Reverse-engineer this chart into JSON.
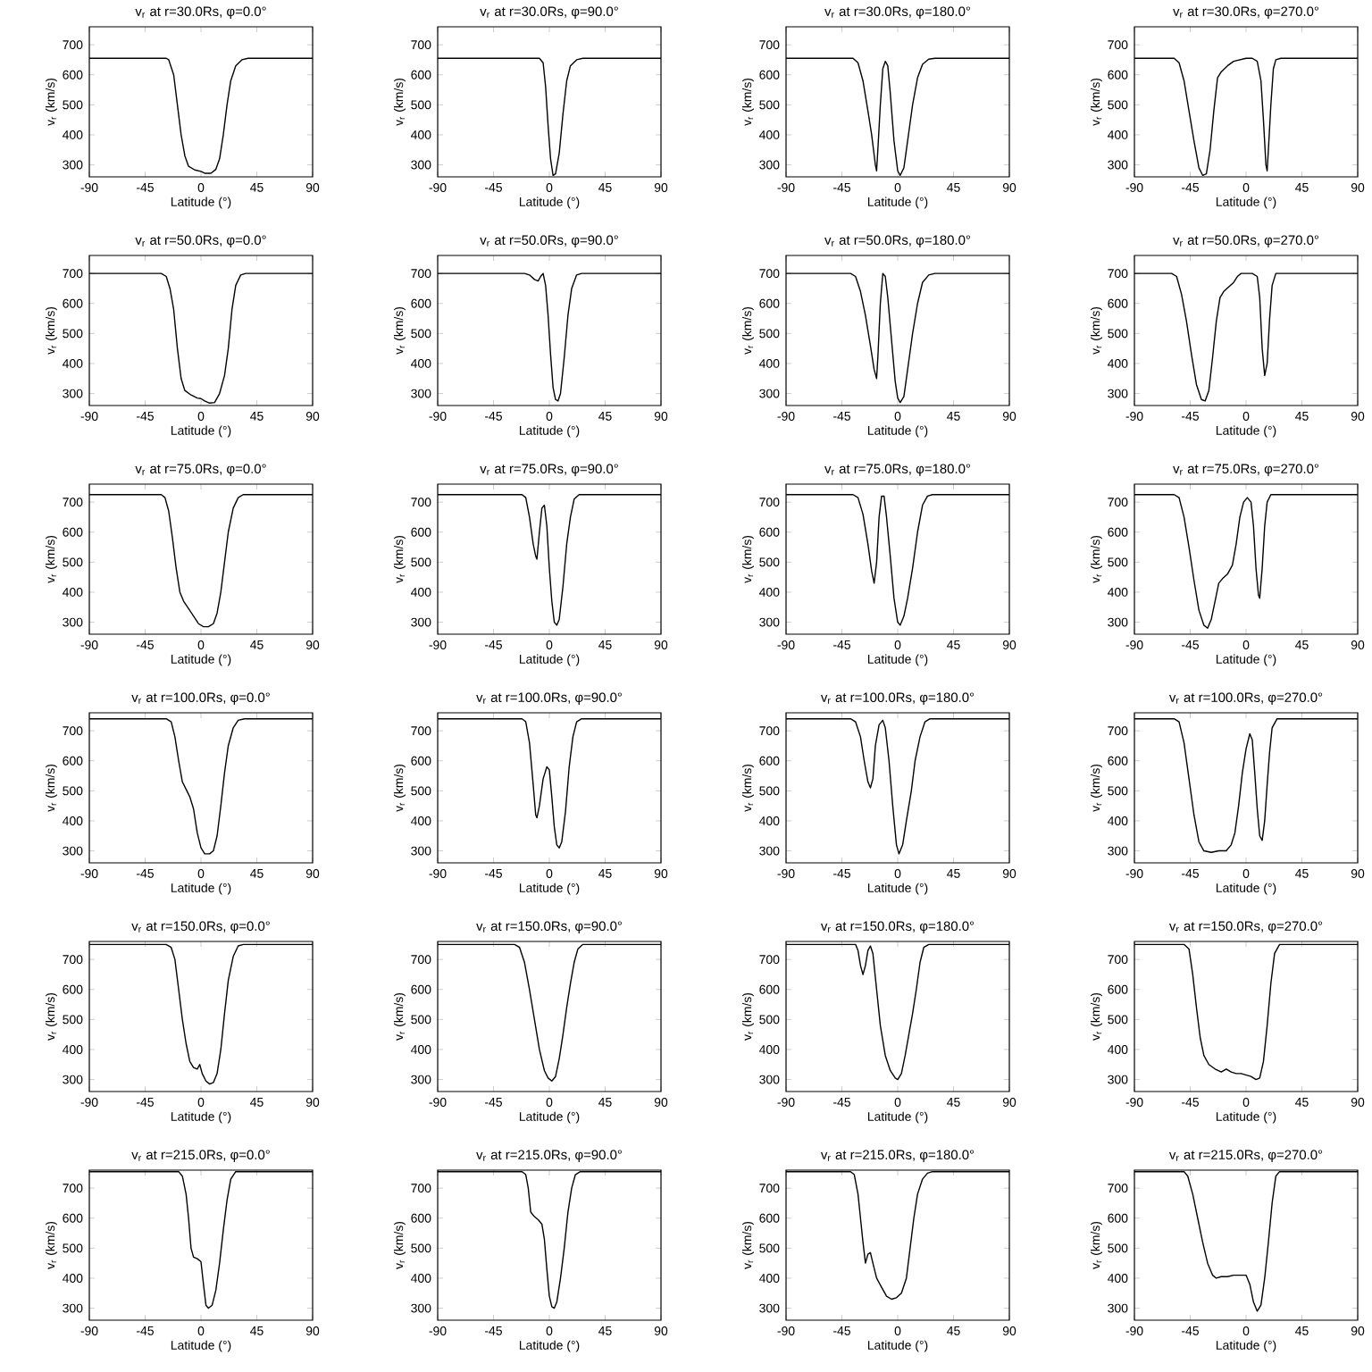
{
  "chart_data": [
    {
      "type": "line",
      "title": "v$_{r}$ at r=30.0Rs, φ=0.0°",
      "xlabel": "Latitude (°)",
      "ylabel": "v$_{r}$ (km/s)",
      "color": "#000000",
      "xlim": [
        -90,
        90
      ],
      "ylim": [
        260,
        760
      ],
      "xticks": [
        -90,
        -45,
        0,
        45,
        90
      ],
      "yticks": [
        300,
        400,
        500,
        600,
        700
      ],
      "x": [
        -90,
        -28,
        -26,
        -22,
        -19,
        -16,
        -13,
        -10,
        -5,
        0,
        3,
        8,
        12,
        15,
        18,
        21,
        24,
        28,
        33,
        38,
        90
      ],
      "values": [
        655,
        655,
        650,
        600,
        500,
        400,
        330,
        295,
        283,
        278,
        272,
        272,
        285,
        320,
        400,
        500,
        580,
        630,
        650,
        655,
        655
      ]
    },
    {
      "type": "line",
      "title": "v$_{r}$ at r=30.0Rs, φ=90.0°",
      "xlabel": "Latitude (°)",
      "ylabel": "v$_{r}$ (km/s)",
      "color": "#000000",
      "xlim": [
        -90,
        90
      ],
      "ylim": [
        260,
        760
      ],
      "xticks": [
        -90,
        -45,
        0,
        45,
        90
      ],
      "yticks": [
        300,
        400,
        500,
        600,
        700
      ],
      "x": [
        -90,
        -8,
        -5,
        -3,
        -1,
        1,
        3,
        5,
        8,
        11,
        14,
        17,
        22,
        27,
        90
      ],
      "values": [
        655,
        655,
        640,
        560,
        430,
        320,
        265,
        270,
        340,
        470,
        580,
        630,
        650,
        655,
        655
      ]
    },
    {
      "type": "line",
      "title": "v$_{r}$ at r=30.0Rs, φ=180.0°",
      "xlabel": "Latitude (°)",
      "ylabel": "v$_{r}$ (km/s)",
      "color": "#000000",
      "xlim": [
        -90,
        90
      ],
      "ylim": [
        260,
        760
      ],
      "xticks": [
        -90,
        -45,
        0,
        45,
        90
      ],
      "yticks": [
        300,
        400,
        500,
        600,
        700
      ],
      "x": [
        -90,
        -36,
        -32,
        -28,
        -24,
        -21,
        -18,
        -17,
        -16,
        -14,
        -12,
        -10,
        -8,
        -6,
        -3,
        0,
        2,
        5,
        8,
        12,
        16,
        20,
        25,
        30,
        90
      ],
      "values": [
        655,
        655,
        640,
        580,
        480,
        400,
        300,
        280,
        350,
        500,
        620,
        645,
        630,
        540,
        380,
        280,
        265,
        290,
        380,
        500,
        590,
        635,
        652,
        655,
        655
      ]
    },
    {
      "type": "line",
      "title": "v$_{r}$ at r=30.0Rs, φ=270.0°",
      "xlabel": "Latitude (°)",
      "ylabel": "v$_{r}$ (km/s)",
      "color": "#000000",
      "xlim": [
        -90,
        90
      ],
      "ylim": [
        260,
        760
      ],
      "xticks": [
        -90,
        -45,
        0,
        45,
        90
      ],
      "yticks": [
        300,
        400,
        500,
        600,
        700
      ],
      "x": [
        -90,
        -58,
        -54,
        -50,
        -46,
        -42,
        -38,
        -35,
        -32,
        -29,
        -26,
        -23,
        -20,
        -15,
        -10,
        -5,
        0,
        5,
        9,
        12,
        14,
        16,
        17,
        18,
        20,
        22,
        24,
        28,
        90
      ],
      "values": [
        655,
        655,
        640,
        580,
        480,
        380,
        290,
        265,
        270,
        350,
        480,
        590,
        610,
        630,
        645,
        650,
        655,
        655,
        645,
        580,
        450,
        300,
        280,
        350,
        500,
        620,
        650,
        655,
        655
      ]
    },
    {
      "type": "line",
      "title": "v$_{r}$ at r=50.0Rs, φ=0.0°",
      "xlabel": "Latitude (°)",
      "ylabel": "v$_{r}$ (km/s)",
      "color": "#000000",
      "xlim": [
        -90,
        90
      ],
      "ylim": [
        260,
        760
      ],
      "xticks": [
        -90,
        -45,
        0,
        45,
        90
      ],
      "yticks": [
        300,
        400,
        500,
        600,
        700
      ],
      "x": [
        -90,
        -32,
        -28,
        -25,
        -22,
        -19,
        -16,
        -13,
        -8,
        -3,
        0,
        3,
        7,
        11,
        15,
        19,
        22,
        25,
        28,
        32,
        36,
        90
      ],
      "values": [
        700,
        700,
        690,
        650,
        580,
        450,
        350,
        310,
        295,
        285,
        283,
        275,
        268,
        270,
        300,
        360,
        450,
        580,
        660,
        695,
        700,
        700
      ]
    },
    {
      "type": "line",
      "title": "v$_{r}$ at r=50.0Rs, φ=90.0°",
      "xlabel": "Latitude (°)",
      "ylabel": "v$_{r}$ (km/s)",
      "color": "#000000",
      "xlim": [
        -90,
        90
      ],
      "ylim": [
        260,
        760
      ],
      "xticks": [
        -90,
        -45,
        0,
        45,
        90
      ],
      "yticks": [
        300,
        400,
        500,
        600,
        700
      ],
      "x": [
        -90,
        -20,
        -16,
        -12,
        -9,
        -7,
        -5,
        -3,
        -1,
        1,
        3,
        5,
        7,
        9,
        12,
        15,
        18,
        22,
        26,
        90
      ],
      "values": [
        700,
        700,
        695,
        680,
        675,
        690,
        700,
        660,
        560,
        430,
        320,
        280,
        275,
        300,
        420,
        560,
        650,
        695,
        700,
        700
      ]
    },
    {
      "type": "line",
      "title": "v$_{r}$ at r=50.0Rs, φ=180.0°",
      "xlabel": "Latitude (°)",
      "ylabel": "v$_{r}$ (km/s)",
      "color": "#000000",
      "xlim": [
        -90,
        90
      ],
      "ylim": [
        260,
        760
      ],
      "xticks": [
        -90,
        -45,
        0,
        45,
        90
      ],
      "yticks": [
        300,
        400,
        500,
        600,
        700
      ],
      "x": [
        -90,
        -38,
        -34,
        -30,
        -26,
        -22,
        -19,
        -17,
        -16,
        -14,
        -12,
        -10,
        -8,
        -5,
        -2,
        0,
        2,
        5,
        8,
        12,
        16,
        20,
        25,
        30,
        90
      ],
      "values": [
        700,
        700,
        690,
        640,
        560,
        460,
        380,
        350,
        420,
        600,
        700,
        690,
        620,
        480,
        340,
        285,
        270,
        290,
        380,
        500,
        600,
        670,
        695,
        700,
        700
      ]
    },
    {
      "type": "line",
      "title": "v$_{r}$ at r=50.0Rs, φ=270.0°",
      "xlabel": "Latitude (°)",
      "ylabel": "v$_{r}$ (km/s)",
      "color": "#000000",
      "xlim": [
        -90,
        90
      ],
      "ylim": [
        260,
        760
      ],
      "xticks": [
        -90,
        -45,
        0,
        45,
        90
      ],
      "yticks": [
        300,
        400,
        500,
        600,
        700
      ],
      "x": [
        -90,
        -60,
        -56,
        -52,
        -48,
        -44,
        -40,
        -36,
        -33,
        -30,
        -27,
        -24,
        -21,
        -18,
        -14,
        -10,
        -7,
        -4,
        5,
        9,
        11,
        13,
        15,
        17,
        19,
        21,
        24,
        90
      ],
      "values": [
        700,
        700,
        690,
        630,
        540,
        430,
        330,
        280,
        275,
        310,
        420,
        540,
        620,
        640,
        655,
        670,
        690,
        700,
        700,
        690,
        620,
        450,
        360,
        400,
        550,
        660,
        700,
        700
      ]
    },
    {
      "type": "line",
      "title": "v$_{r}$ at r=75.0Rs, φ=0.0°",
      "xlabel": "Latitude (°)",
      "ylabel": "v$_{r}$ (km/s)",
      "color": "#000000",
      "xlim": [
        -90,
        90
      ],
      "ylim": [
        260,
        760
      ],
      "xticks": [
        -90,
        -45,
        0,
        45,
        90
      ],
      "yticks": [
        300,
        400,
        500,
        600,
        700
      ],
      "x": [
        -90,
        -32,
        -29,
        -26,
        -23,
        -20,
        -17,
        -14,
        -10,
        -6,
        -2,
        2,
        6,
        10,
        13,
        16,
        19,
        22,
        26,
        30,
        34,
        90
      ],
      "values": [
        725,
        725,
        715,
        670,
        580,
        480,
        400,
        370,
        345,
        320,
        295,
        285,
        285,
        295,
        330,
        400,
        500,
        600,
        680,
        715,
        725,
        725
      ]
    },
    {
      "type": "line",
      "title": "v$_{r}$ at r=75.0Rs, φ=90.0°",
      "xlabel": "Latitude (°)",
      "ylabel": "v$_{r}$ (km/s)",
      "color": "#000000",
      "xlim": [
        -90,
        90
      ],
      "ylim": [
        260,
        760
      ],
      "xticks": [
        -90,
        -45,
        0,
        45,
        90
      ],
      "yticks": [
        300,
        400,
        500,
        600,
        700
      ],
      "x": [
        -90,
        -22,
        -19,
        -16,
        -13,
        -11,
        -10,
        -8,
        -6,
        -4,
        -2,
        0,
        2,
        4,
        6,
        8,
        11,
        14,
        17,
        20,
        24,
        90
      ],
      "values": [
        725,
        725,
        715,
        650,
        560,
        520,
        510,
        600,
        680,
        690,
        620,
        480,
        370,
        300,
        290,
        310,
        420,
        560,
        650,
        710,
        725,
        725
      ]
    },
    {
      "type": "line",
      "title": "v$_{r}$ at r=75.0Rs, φ=180.0°",
      "xlabel": "Latitude (°)",
      "ylabel": "v$_{r}$ (km/s)",
      "color": "#000000",
      "xlim": [
        -90,
        90
      ],
      "ylim": [
        260,
        760
      ],
      "xticks": [
        -90,
        -45,
        0,
        45,
        90
      ],
      "yticks": [
        300,
        400,
        500,
        600,
        700
      ],
      "x": [
        -90,
        -36,
        -32,
        -28,
        -24,
        -21,
        -19,
        -17,
        -15,
        -13,
        -11,
        -9,
        -6,
        -3,
        0,
        2,
        5,
        8,
        12,
        16,
        20,
        24,
        28,
        90
      ],
      "values": [
        725,
        725,
        715,
        660,
        560,
        470,
        430,
        500,
        650,
        720,
        720,
        650,
        520,
        380,
        300,
        290,
        320,
        380,
        480,
        600,
        690,
        720,
        725,
        725
      ]
    },
    {
      "type": "line",
      "title": "v$_{r}$ at r=75.0Rs, φ=270.0°",
      "xlabel": "Latitude (°)",
      "ylabel": "v$_{r}$ (km/s)",
      "color": "#000000",
      "xlim": [
        -90,
        90
      ],
      "ylim": [
        260,
        760
      ],
      "xticks": [
        -90,
        -45,
        0,
        45,
        90
      ],
      "yticks": [
        300,
        400,
        500,
        600,
        700
      ],
      "x": [
        -90,
        -58,
        -54,
        -50,
        -46,
        -42,
        -38,
        -34,
        -31,
        -28,
        -25,
        -22,
        -19,
        -15,
        -11,
        -8,
        -5,
        -2,
        1,
        4,
        6,
        8,
        10,
        11,
        13,
        15,
        17,
        20,
        90
      ],
      "values": [
        725,
        725,
        715,
        650,
        550,
        440,
        340,
        290,
        280,
        310,
        370,
        430,
        445,
        460,
        490,
        560,
        650,
        700,
        715,
        700,
        620,
        480,
        390,
        380,
        480,
        620,
        700,
        725,
        725
      ]
    },
    {
      "type": "line",
      "title": "v$_{r}$ at r=100.0Rs, φ=0.0°",
      "xlabel": "Latitude (°)",
      "ylabel": "v$_{r}$ (km/s)",
      "color": "#000000",
      "xlim": [
        -90,
        90
      ],
      "ylim": [
        260,
        760
      ],
      "xticks": [
        -90,
        -45,
        0,
        45,
        90
      ],
      "yticks": [
        300,
        400,
        500,
        600,
        700
      ],
      "x": [
        -90,
        -28,
        -24,
        -21,
        -18,
        -15,
        -12,
        -9,
        -6,
        -3,
        0,
        3,
        7,
        10,
        13,
        16,
        19,
        22,
        26,
        30,
        35,
        90
      ],
      "values": [
        740,
        740,
        730,
        680,
        600,
        530,
        505,
        480,
        440,
        360,
        310,
        290,
        290,
        300,
        350,
        450,
        560,
        650,
        710,
        735,
        740,
        740
      ]
    },
    {
      "type": "line",
      "title": "v$_{r}$ at r=100.0Rs, φ=90.0°",
      "xlabel": "Latitude (°)",
      "ylabel": "v$_{r}$ (km/s)",
      "color": "#000000",
      "xlim": [
        -90,
        90
      ],
      "ylim": [
        260,
        760
      ],
      "xticks": [
        -90,
        -45,
        0,
        45,
        90
      ],
      "yticks": [
        300,
        400,
        500,
        600,
        700
      ],
      "x": [
        -90,
        -22,
        -19,
        -16,
        -13,
        -11,
        -10,
        -8,
        -5,
        -2,
        0,
        2,
        4,
        6,
        8,
        10,
        13,
        16,
        19,
        22,
        26,
        90
      ],
      "values": [
        740,
        740,
        730,
        660,
        520,
        420,
        410,
        450,
        540,
        580,
        570,
        480,
        380,
        320,
        310,
        330,
        430,
        580,
        680,
        730,
        740,
        740
      ]
    },
    {
      "type": "line",
      "title": "v$_{r}$ at r=100.0Rs, φ=180.0°",
      "xlabel": "Latitude (°)",
      "ylabel": "v$_{r}$ (km/s)",
      "color": "#000000",
      "xlim": [
        -90,
        90
      ],
      "ylim": [
        260,
        760
      ],
      "xticks": [
        -90,
        -45,
        0,
        45,
        90
      ],
      "yticks": [
        300,
        400,
        500,
        600,
        700
      ],
      "x": [
        -90,
        -38,
        -34,
        -30,
        -27,
        -24,
        -22,
        -20,
        -18,
        -15,
        -12,
        -10,
        -7,
        -4,
        -1,
        1,
        4,
        7,
        11,
        14,
        18,
        22,
        26,
        90
      ],
      "values": [
        740,
        740,
        730,
        680,
        600,
        530,
        510,
        540,
        650,
        720,
        735,
        710,
        600,
        450,
        320,
        290,
        320,
        400,
        500,
        600,
        680,
        730,
        740,
        740
      ]
    },
    {
      "type": "line",
      "title": "v$_{r}$ at r=100.0Rs, φ=270.0°",
      "xlabel": "Latitude (°)",
      "ylabel": "v$_{r}$ (km/s)",
      "color": "#000000",
      "xlim": [
        -90,
        90
      ],
      "ylim": [
        260,
        760
      ],
      "xticks": [
        -90,
        -45,
        0,
        45,
        90
      ],
      "yticks": [
        300,
        400,
        500,
        600,
        700
      ],
      "x": [
        -90,
        -58,
        -54,
        -50,
        -46,
        -42,
        -38,
        -34,
        -28,
        -22,
        -16,
        -12,
        -9,
        -6,
        -3,
        0,
        3,
        5,
        7,
        9,
        11,
        13,
        15,
        17,
        19,
        21,
        25,
        90
      ],
      "values": [
        740,
        740,
        730,
        660,
        540,
        420,
        330,
        300,
        295,
        300,
        300,
        320,
        360,
        450,
        560,
        640,
        690,
        670,
        560,
        440,
        350,
        335,
        400,
        520,
        630,
        710,
        740,
        740
      ]
    },
    {
      "type": "line",
      "title": "v$_{r}$ at r=150.0Rs, φ=0.0°",
      "xlabel": "Latitude (°)",
      "ylabel": "v$_{r}$ (km/s)",
      "color": "#000000",
      "xlim": [
        -90,
        90
      ],
      "ylim": [
        260,
        760
      ],
      "xticks": [
        -90,
        -45,
        0,
        45,
        90
      ],
      "yticks": [
        300,
        400,
        500,
        600,
        700
      ],
      "x": [
        -90,
        -28,
        -24,
        -21,
        -18,
        -15,
        -12,
        -9,
        -6,
        -3,
        -1,
        1,
        4,
        7,
        10,
        13,
        16,
        19,
        22,
        26,
        30,
        34,
        90
      ],
      "values": [
        750,
        750,
        740,
        700,
        600,
        500,
        420,
        360,
        340,
        335,
        350,
        320,
        295,
        285,
        290,
        320,
        400,
        520,
        630,
        710,
        745,
        750,
        750
      ]
    },
    {
      "type": "line",
      "title": "v$_{r}$ at r=150.0Rs, φ=90.0°",
      "xlabel": "Latitude (°)",
      "ylabel": "v$_{r}$ (km/s)",
      "color": "#000000",
      "xlim": [
        -90,
        90
      ],
      "ylim": [
        260,
        760
      ],
      "xticks": [
        -90,
        -45,
        0,
        45,
        90
      ],
      "yticks": [
        300,
        400,
        500,
        600,
        700
      ],
      "x": [
        -90,
        -28,
        -24,
        -20,
        -16,
        -12,
        -8,
        -4,
        -1,
        2,
        5,
        8,
        11,
        14,
        17,
        20,
        23,
        27,
        90
      ],
      "values": [
        750,
        750,
        740,
        690,
        600,
        500,
        400,
        330,
        305,
        295,
        310,
        370,
        450,
        540,
        620,
        690,
        735,
        750,
        750
      ]
    },
    {
      "type": "line",
      "title": "v$_{r}$ at r=150.0Rs, φ=180.0°",
      "xlabel": "Latitude (°)",
      "ylabel": "v$_{r}$ (km/s)",
      "color": "#000000",
      "xlim": [
        -90,
        90
      ],
      "ylim": [
        260,
        760
      ],
      "xticks": [
        -90,
        -45,
        0,
        45,
        90
      ],
      "yticks": [
        300,
        400,
        500,
        600,
        700
      ],
      "x": [
        -90,
        -34,
        -32,
        -30,
        -28,
        -26,
        -24,
        -22,
        -20,
        -17,
        -14,
        -10,
        -6,
        -2,
        0,
        3,
        6,
        9,
        12,
        15,
        18,
        21,
        25,
        90
      ],
      "values": [
        750,
        750,
        730,
        680,
        650,
        680,
        730,
        745,
        720,
        600,
        480,
        380,
        330,
        305,
        300,
        320,
        380,
        450,
        520,
        600,
        690,
        740,
        750,
        750
      ]
    },
    {
      "type": "line",
      "title": "v$_{r}$ at r=150.0Rs, φ=270.0°",
      "xlabel": "Latitude (°)",
      "ylabel": "v$_{r}$ (km/s)",
      "color": "#000000",
      "xlim": [
        -90,
        90
      ],
      "ylim": [
        260,
        760
      ],
      "xticks": [
        -90,
        -45,
        0,
        45,
        90
      ],
      "yticks": [
        300,
        400,
        500,
        600,
        700
      ],
      "x": [
        -90,
        -50,
        -46,
        -43,
        -40,
        -37,
        -34,
        -30,
        -25,
        -20,
        -16,
        -12,
        -8,
        -4,
        0,
        4,
        8,
        11,
        14,
        17,
        20,
        23,
        27,
        90
      ],
      "values": [
        750,
        750,
        735,
        650,
        540,
        440,
        380,
        350,
        335,
        325,
        335,
        325,
        320,
        320,
        315,
        310,
        300,
        305,
        360,
        480,
        620,
        720,
        750,
        750
      ]
    },
    {
      "type": "line",
      "title": "v$_{r}$ at r=215.0Rs, φ=0.0°",
      "xlabel": "Latitude (°)",
      "ylabel": "v$_{r}$ (km/s)",
      "color": "#000000",
      "xlim": [
        -90,
        90
      ],
      "ylim": [
        260,
        760
      ],
      "xticks": [
        -90,
        -45,
        0,
        45,
        90
      ],
      "yticks": [
        300,
        400,
        500,
        600,
        700
      ],
      "x": [
        -90,
        -18,
        -15,
        -12,
        -10,
        -8,
        -6,
        -3,
        0,
        2,
        4,
        6,
        9,
        12,
        15,
        18,
        21,
        24,
        28,
        90
      ],
      "values": [
        755,
        755,
        740,
        680,
        600,
        500,
        470,
        465,
        455,
        380,
        310,
        300,
        310,
        360,
        450,
        560,
        660,
        730,
        755,
        755
      ]
    },
    {
      "type": "line",
      "title": "v$_{r}$ at r=215.0Rs, φ=90.0°",
      "xlabel": "Latitude (°)",
      "ylabel": "v$_{r}$ (km/s)",
      "color": "#000000",
      "xlim": [
        -90,
        90
      ],
      "ylim": [
        260,
        760
      ],
      "xticks": [
        -90,
        -45,
        0,
        45,
        90
      ],
      "yticks": [
        300,
        400,
        500,
        600,
        700
      ],
      "x": [
        -90,
        -22,
        -19,
        -17,
        -15,
        -12,
        -9,
        -6,
        -4,
        -2,
        0,
        2,
        4,
        6,
        9,
        12,
        15,
        18,
        21,
        25,
        90
      ],
      "values": [
        755,
        755,
        745,
        700,
        620,
        605,
        595,
        580,
        530,
        430,
        340,
        305,
        300,
        320,
        400,
        500,
        620,
        700,
        745,
        755,
        755
      ]
    },
    {
      "type": "line",
      "title": "v$_{r}$ at r=215.0Rs, φ=180.0°",
      "xlabel": "Latitude (°)",
      "ylabel": "v$_{r}$ (km/s)",
      "color": "#000000",
      "xlim": [
        -90,
        90
      ],
      "ylim": [
        260,
        760
      ],
      "xticks": [
        -90,
        -45,
        0,
        45,
        90
      ],
      "yticks": [
        300,
        400,
        500,
        600,
        700
      ],
      "x": [
        -90,
        -38,
        -35,
        -32,
        -30,
        -28,
        -26,
        -24,
        -22,
        -20,
        -17,
        -13,
        -9,
        -5,
        -1,
        3,
        7,
        10,
        13,
        16,
        20,
        24,
        28,
        90
      ],
      "values": [
        755,
        755,
        745,
        680,
        600,
        520,
        450,
        480,
        485,
        450,
        400,
        370,
        340,
        330,
        335,
        350,
        400,
        500,
        600,
        680,
        730,
        750,
        755,
        755
      ]
    },
    {
      "type": "line",
      "title": "v$_{r}$ at r=215.0Rs, φ=270.0°",
      "xlabel": "Latitude (°)",
      "ylabel": "v$_{r}$ (km/s)",
      "color": "#000000",
      "xlim": [
        -90,
        90
      ],
      "ylim": [
        260,
        760
      ],
      "xticks": [
        -90,
        -45,
        0,
        45,
        90
      ],
      "yticks": [
        300,
        400,
        500,
        600,
        700
      ],
      "x": [
        -90,
        -50,
        -47,
        -43,
        -39,
        -35,
        -31,
        -27,
        -24,
        -20,
        -15,
        -10,
        -5,
        0,
        3,
        6,
        9,
        12,
        15,
        18,
        21,
        24,
        27,
        90
      ],
      "values": [
        755,
        755,
        740,
        680,
        600,
        520,
        450,
        410,
        400,
        405,
        405,
        410,
        410,
        410,
        380,
        320,
        290,
        310,
        400,
        520,
        650,
        740,
        755,
        755
      ]
    }
  ]
}
